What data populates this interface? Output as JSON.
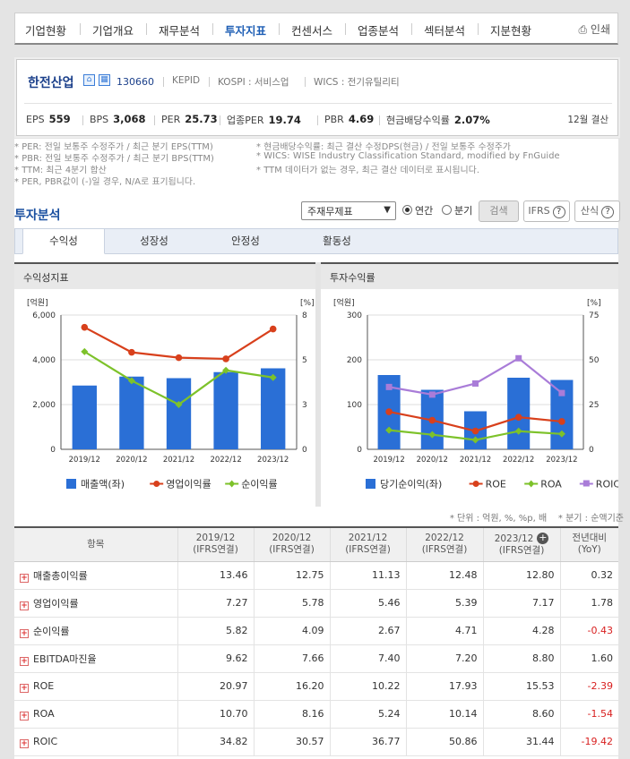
{
  "nav": {
    "tabs": [
      "기업현황",
      "기업개요",
      "재무분석",
      "투자지표",
      "컨센서스",
      "업종분석",
      "섹터분석",
      "지분현황"
    ],
    "active_tab": "투자지표",
    "print_label": "인쇄"
  },
  "company": {
    "name": "한전산업",
    "code": "130660",
    "exchange_id": "KEPID",
    "market": "KOSPI : 서비스업",
    "wics": "WICS : 전기유틸리티",
    "metrics": [
      {
        "label": "EPS",
        "value": "559"
      },
      {
        "label": "BPS",
        "value": "3,068"
      },
      {
        "label": "PER",
        "value": "25.73"
      },
      {
        "label": "업종PER",
        "value": "19.74"
      },
      {
        "label": "PBR",
        "value": "4.69"
      },
      {
        "label": "현금배당수익률",
        "value": "2.07%"
      }
    ],
    "settlement": "12월 결산"
  },
  "notes": {
    "left": [
      "* PER: 전일 보통주 수정주가 / 최근 분기 EPS(TTM)",
      "* PBR: 전일 보통주 수정주가 / 최근 분기 BPS(TTM)",
      "* TTM: 최근 4분기 합산",
      "* PER, PBR값이 (-)일 경우, N/A로 표기됩니다."
    ],
    "right": [
      "* 현금배당수익률: 최근 결산 수정DPS(현금) / 전일 보통주 수정주가",
      "* WICS: WISE Industry Classification Standard, modified by FnGuide",
      "* TTM 데이터가 없는 경우, 최근 결산 데이터로 표시됩니다."
    ]
  },
  "section": {
    "title": "투자분석",
    "select_value": "주재무제표",
    "radio_annual": "연간",
    "radio_quarter": "분기",
    "search_btn": "검색",
    "ifrs_btn": "IFRS",
    "formula_btn": "산식",
    "subtabs": [
      "수익성",
      "성장성",
      "안정성",
      "활동성"
    ]
  },
  "charts": {
    "left_title": "수익성지표",
    "right_title": "투자수익률",
    "left_ylabel": "[억원]",
    "left_y2label": "[%]",
    "right_ylabel": "[억원]",
    "right_y2label": "[%]"
  },
  "chart_data": [
    {
      "type": "bar",
      "title": "수익성지표",
      "categories": [
        "2019/12",
        "2020/12",
        "2021/12",
        "2022/12",
        "2023/12"
      ],
      "ylim": [
        0,
        6000
      ],
      "y_ticks": [
        "0",
        "2,000",
        "4,000",
        "6,000"
      ],
      "y2lim": [
        0,
        8
      ],
      "y2_ticks": [
        "0",
        "3",
        "5",
        "8"
      ],
      "series": [
        {
          "name": "매출액(좌)",
          "kind": "bar",
          "axis": "left",
          "color": "#2a6fd6",
          "values": [
            2850,
            3250,
            3180,
            3450,
            3620
          ]
        },
        {
          "name": "영업이익률",
          "kind": "line",
          "axis": "right",
          "color": "#d8401c",
          "values": [
            7.27,
            5.78,
            5.46,
            5.39,
            7.17
          ]
        },
        {
          "name": "순이익률",
          "kind": "line",
          "axis": "right",
          "color": "#7dc22a",
          "values": [
            5.82,
            4.09,
            2.67,
            4.71,
            4.28
          ]
        }
      ],
      "grid": true,
      "legend": "bottom"
    },
    {
      "type": "bar",
      "title": "투자수익률",
      "categories": [
        "2019/12",
        "2020/12",
        "2021/12",
        "2022/12",
        "2023/12"
      ],
      "ylim": [
        0,
        300
      ],
      "y_ticks": [
        "0",
        "100",
        "200",
        "300"
      ],
      "y2lim": [
        0,
        75
      ],
      "y2_ticks": [
        "0",
        "25",
        "50",
        "75"
      ],
      "series": [
        {
          "name": "당기순이익(좌)",
          "kind": "bar",
          "axis": "left",
          "color": "#2a6fd6",
          "values": [
            166,
            133,
            85,
            160,
            155
          ]
        },
        {
          "name": "ROE",
          "kind": "line",
          "axis": "right",
          "color": "#d8401c",
          "values": [
            20.97,
            16.2,
            10.22,
            17.93,
            15.53
          ]
        },
        {
          "name": "ROA",
          "kind": "line",
          "axis": "right",
          "color": "#7dc22a",
          "values": [
            10.7,
            8.16,
            5.24,
            10.14,
            8.6
          ]
        },
        {
          "name": "ROIC",
          "kind": "line",
          "axis": "right",
          "color": "#a97cd8",
          "values": [
            34.82,
            30.57,
            36.77,
            50.86,
            31.44
          ]
        }
      ],
      "grid": true,
      "legend": "bottom"
    }
  ],
  "unit_note": "* 단위 : 억원, %, %p, 배",
  "unit_note2": "* 분기 : 순액기준",
  "table": {
    "header_item": "항목",
    "columns": [
      {
        "period": "2019/12",
        "basis": "(IFRS연결)"
      },
      {
        "period": "2020/12",
        "basis": "(IFRS연결)"
      },
      {
        "period": "2021/12",
        "basis": "(IFRS연결)"
      },
      {
        "period": "2022/12",
        "basis": "(IFRS연결)"
      },
      {
        "period": "2023/12",
        "basis": "(IFRS연결)"
      }
    ],
    "yoy_header": "전년대비",
    "yoy_sub": "(YoY)",
    "rows": [
      {
        "label": "매출총이익률",
        "values": [
          "13.46",
          "12.75",
          "11.13",
          "12.48",
          "12.80"
        ],
        "yoy": "0.32",
        "neg": false
      },
      {
        "label": "영업이익률",
        "values": [
          "7.27",
          "5.78",
          "5.46",
          "5.39",
          "7.17"
        ],
        "yoy": "1.78",
        "neg": false
      },
      {
        "label": "순이익률",
        "values": [
          "5.82",
          "4.09",
          "2.67",
          "4.71",
          "4.28"
        ],
        "yoy": "-0.43",
        "neg": true
      },
      {
        "label": "EBITDA마진율",
        "values": [
          "9.62",
          "7.66",
          "7.40",
          "7.20",
          "8.80"
        ],
        "yoy": "1.60",
        "neg": false
      },
      {
        "label": "ROE",
        "values": [
          "20.97",
          "16.20",
          "10.22",
          "17.93",
          "15.53"
        ],
        "yoy": "-2.39",
        "neg": true
      },
      {
        "label": "ROA",
        "values": [
          "10.70",
          "8.16",
          "5.24",
          "10.14",
          "8.60"
        ],
        "yoy": "-1.54",
        "neg": true
      },
      {
        "label": "ROIC",
        "values": [
          "34.82",
          "30.57",
          "36.77",
          "50.86",
          "31.44"
        ],
        "yoy": "-19.42",
        "neg": true
      }
    ]
  }
}
